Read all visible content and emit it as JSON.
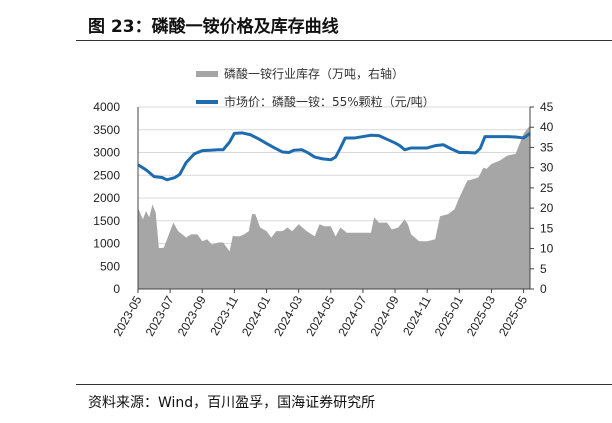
{
  "title": "图 23：磷酸一铵价格及库存曲线",
  "source": "资料来源：Wind，百川盈孚，国海证券研究所",
  "colors": {
    "price": "#1f6bb0",
    "inventory": "#a6a6a6",
    "grid": "#d9d9d9"
  },
  "chart_data": {
    "type": "line+area",
    "title": "磷酸一铵价格及库存曲线",
    "x_unit": "months since 2023-05",
    "x_tick_labels": [
      "2023-05",
      "2023-07",
      "2023-09",
      "2023-11",
      "2024-01",
      "2024-03",
      "2024-05",
      "2024-07",
      "2024-09",
      "2024-11",
      "2025-01",
      "2025-03",
      "2025-05"
    ],
    "left_axis": {
      "range": [
        0,
        4000
      ],
      "ticks": [
        "0",
        "500",
        "1000",
        "1500",
        "2000",
        "2500",
        "3000",
        "3500",
        "4000"
      ]
    },
    "right_axis": {
      "range": [
        0,
        45
      ],
      "ticks": [
        "0",
        "5",
        "10",
        "15",
        "20",
        "25",
        "30",
        "35",
        "40",
        "45"
      ]
    },
    "grid": true,
    "legend_position": "top",
    "series": [
      {
        "name": "磷酸一铵行业库存（万吨，右轴）",
        "type": "area",
        "axis": "right",
        "x": [
          0,
          0.3,
          0.5,
          0.7,
          0.9,
          1.1,
          1.3,
          1.6,
          2,
          2.2,
          2.5,
          3,
          3.3,
          3.7,
          4,
          4.3,
          4.6,
          5,
          5.3,
          5.7,
          5.9,
          6.3,
          6.6,
          6.9,
          7.1,
          7.3,
          7.6,
          8,
          8.3,
          8.6,
          9,
          9.3,
          9.6,
          10,
          10.5,
          11,
          11.3,
          11.6,
          12,
          12.3,
          12.6,
          13,
          13.5,
          14,
          14.5,
          14.7,
          15,
          15.5,
          15.8,
          16.2,
          16.6,
          16.8,
          17,
          17.5,
          18,
          18.5,
          18.8,
          19.3,
          19.7,
          20,
          20.5,
          20.9,
          21.2,
          21.5,
          21.7,
          22,
          22.5,
          23,
          23.5,
          24,
          24.4
        ],
        "values": [
          20.1,
          17.2,
          19.3,
          17.7,
          20.9,
          18.9,
          10.1,
          10.2,
          14.3,
          16.4,
          14.3,
          12.7,
          13.5,
          13.5,
          11.8,
          12.3,
          11,
          11.5,
          11.5,
          9.3,
          13.1,
          13,
          13.5,
          14.3,
          18.5,
          18.5,
          15.2,
          14.3,
          12.7,
          14.3,
          14.3,
          15.2,
          14.3,
          16,
          14.3,
          13,
          16,
          15.5,
          15.5,
          13,
          15.2,
          13.9,
          13.9,
          13.9,
          13.9,
          17.7,
          16.4,
          16.4,
          14.7,
          15.2,
          17.2,
          16,
          13.5,
          11.8,
          11.8,
          12.3,
          18,
          18.5,
          19.7,
          22.6,
          26.8,
          27.2,
          27.6,
          30,
          29.7,
          30.9,
          31.7,
          33,
          33.4,
          38.4,
          40.4
        ]
      },
      {
        "name": "市场价：磷酸一铵：55%颗粒（元/吨）",
        "type": "line",
        "axis": "left",
        "x": [
          0,
          0.5,
          1,
          1.5,
          1.8,
          2.3,
          2.6,
          3,
          3.5,
          4,
          4.5,
          5,
          5.3,
          5.7,
          6,
          6.5,
          7,
          7.5,
          8,
          8.5,
          9,
          9.4,
          9.7,
          10.2,
          10.6,
          11,
          11.5,
          12,
          12.3,
          12.6,
          12.9,
          13.5,
          14,
          14.5,
          15,
          15.5,
          16,
          16.3,
          16.6,
          17,
          17.5,
          18,
          18.5,
          19,
          19.5,
          20,
          20.5,
          21,
          21.3,
          21.6,
          22,
          23,
          23.5,
          24,
          24.4
        ],
        "values": [
          2730,
          2620,
          2470,
          2450,
          2400,
          2450,
          2520,
          2780,
          2970,
          3040,
          3050,
          3060,
          3060,
          3230,
          3420,
          3430,
          3390,
          3300,
          3200,
          3100,
          3010,
          3000,
          3050,
          3060,
          2990,
          2900,
          2860,
          2840,
          2900,
          3100,
          3320,
          3320,
          3350,
          3380,
          3370,
          3290,
          3210,
          3150,
          3060,
          3100,
          3100,
          3100,
          3150,
          3170,
          3080,
          3000,
          3000,
          2990,
          3090,
          3350,
          3350,
          3350,
          3340,
          3320,
          3420
        ]
      }
    ]
  }
}
